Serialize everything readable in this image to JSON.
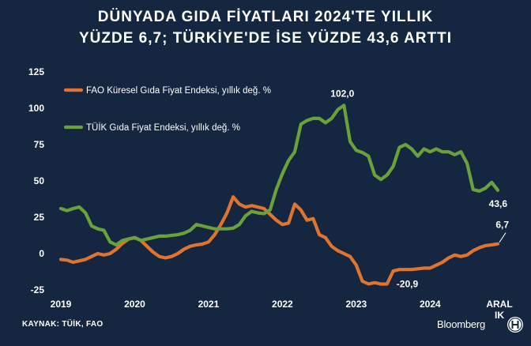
{
  "title_line1": "DÜNYADA GIDA FİYATLARI 2024'TE YILLIK",
  "title_line2": "YÜZDE 6,7; TÜRKİYE'DE İSE YÜZDE 43,6 ARTTI",
  "source": "KAYNAK: TÜİK, FAO",
  "brand": "Bloomberg",
  "logo_icon": "ht-emblem-icon",
  "colors": {
    "background": "#152640",
    "fao": "#e0742e",
    "tuik": "#6aa13a",
    "text": "#ffffff"
  },
  "chart_data": {
    "type": "line",
    "title": "DÜNYADA GIDA FİYATLARI 2024'TE YILLIK YÜZDE 6,7; TÜRKİYE'DE İSE YÜZDE 43,6 ARTTI",
    "xlabel": "",
    "ylabel": "",
    "x_range": [
      "2019-01",
      "2024-12"
    ],
    "ylim": [
      -25,
      125
    ],
    "yticks": [
      -25,
      0,
      25,
      50,
      75,
      100,
      125
    ],
    "ytick_labels": [
      "-25",
      "0",
      "25",
      "50",
      "75",
      "100",
      "125"
    ],
    "xticks": [
      {
        "x": "2019-01",
        "label": "2019"
      },
      {
        "x": "2020-01",
        "label": "2020"
      },
      {
        "x": "2021-01",
        "label": "2021"
      },
      {
        "x": "2022-01",
        "label": "2022"
      },
      {
        "x": "2023-01",
        "label": "2023"
      },
      {
        "x": "2024-01",
        "label": "2024"
      },
      {
        "x": "2024-12",
        "label": "ARAL IK"
      }
    ],
    "grid": false,
    "legend": "top-left",
    "series": [
      {
        "name": "FAO Küresel Gıda Fiyat Endeksi, yıllık değ. %",
        "color": "#e0742e",
        "points": [
          [
            "2019-01",
            -4
          ],
          [
            "2019-02",
            -4.5
          ],
          [
            "2019-03",
            -6
          ],
          [
            "2019-04",
            -5
          ],
          [
            "2019-05",
            -4
          ],
          [
            "2019-06",
            -2
          ],
          [
            "2019-07",
            0
          ],
          [
            "2019-08",
            -1
          ],
          [
            "2019-09",
            0
          ],
          [
            "2019-10",
            3
          ],
          [
            "2019-11",
            7
          ],
          [
            "2019-12",
            10
          ],
          [
            "2020-01",
            11
          ],
          [
            "2020-02",
            9
          ],
          [
            "2020-03",
            5
          ],
          [
            "2020-04",
            1
          ],
          [
            "2020-05",
            -2
          ],
          [
            "2020-06",
            -3
          ],
          [
            "2020-07",
            -2
          ],
          [
            "2020-08",
            0
          ],
          [
            "2020-09",
            3
          ],
          [
            "2020-10",
            5
          ],
          [
            "2020-11",
            6
          ],
          [
            "2020-12",
            6.5
          ],
          [
            "2021-01",
            8
          ],
          [
            "2021-02",
            13
          ],
          [
            "2021-03",
            20
          ],
          [
            "2021-04",
            28
          ],
          [
            "2021-05",
            39
          ],
          [
            "2021-06",
            34
          ],
          [
            "2021-07",
            32
          ],
          [
            "2021-08",
            33
          ],
          [
            "2021-09",
            32
          ],
          [
            "2021-10",
            31
          ],
          [
            "2021-11",
            27
          ],
          [
            "2021-12",
            23
          ],
          [
            "2022-01",
            20
          ],
          [
            "2022-02",
            21
          ],
          [
            "2022-03",
            34
          ],
          [
            "2022-04",
            30
          ],
          [
            "2022-05",
            23
          ],
          [
            "2022-06",
            24
          ],
          [
            "2022-07",
            13
          ],
          [
            "2022-08",
            11
          ],
          [
            "2022-09",
            5
          ],
          [
            "2022-10",
            2
          ],
          [
            "2022-11",
            0
          ],
          [
            "2022-12",
            -2
          ],
          [
            "2023-01",
            -8
          ],
          [
            "2023-02",
            -19
          ],
          [
            "2023-03",
            -20.9
          ],
          [
            "2023-04",
            -20
          ],
          [
            "2023-05",
            -21
          ],
          [
            "2023-06",
            -20.9
          ],
          [
            "2023-07",
            -12
          ],
          [
            "2023-08",
            -11
          ],
          [
            "2023-09",
            -11
          ],
          [
            "2023-10",
            -11
          ],
          [
            "2023-11",
            -10.5
          ],
          [
            "2023-12",
            -10
          ],
          [
            "2024-01",
            -10
          ],
          [
            "2024-02",
            -8
          ],
          [
            "2024-03",
            -6
          ],
          [
            "2024-04",
            -3
          ],
          [
            "2024-05",
            -1
          ],
          [
            "2024-06",
            -2
          ],
          [
            "2024-07",
            -1
          ],
          [
            "2024-08",
            2
          ],
          [
            "2024-09",
            4
          ],
          [
            "2024-10",
            5.5
          ],
          [
            "2024-11",
            6
          ],
          [
            "2024-12",
            6.7
          ]
        ]
      },
      {
        "name": "TÜİK Gıda Fiyat Endeksi, yıllık değ. %",
        "color": "#6aa13a",
        "points": [
          [
            "2019-01",
            31
          ],
          [
            "2019-02",
            29.5
          ],
          [
            "2019-03",
            31
          ],
          [
            "2019-04",
            32
          ],
          [
            "2019-05",
            28
          ],
          [
            "2019-06",
            19
          ],
          [
            "2019-07",
            17
          ],
          [
            "2019-08",
            16
          ],
          [
            "2019-09",
            8
          ],
          [
            "2019-10",
            6
          ],
          [
            "2019-11",
            9
          ],
          [
            "2019-12",
            10
          ],
          [
            "2020-01",
            11
          ],
          [
            "2020-02",
            9
          ],
          [
            "2020-03",
            10
          ],
          [
            "2020-04",
            11
          ],
          [
            "2020-05",
            12
          ],
          [
            "2020-06",
            12
          ],
          [
            "2020-07",
            12.5
          ],
          [
            "2020-08",
            13
          ],
          [
            "2020-09",
            14
          ],
          [
            "2020-10",
            16
          ],
          [
            "2020-11",
            20
          ],
          [
            "2020-12",
            19
          ],
          [
            "2021-01",
            18
          ],
          [
            "2021-02",
            17
          ],
          [
            "2021-03",
            17
          ],
          [
            "2021-04",
            17
          ],
          [
            "2021-05",
            17.5
          ],
          [
            "2021-06",
            20
          ],
          [
            "2021-07",
            26
          ],
          [
            "2021-08",
            29
          ],
          [
            "2021-09",
            28
          ],
          [
            "2021-10",
            27.5
          ],
          [
            "2021-11",
            30
          ],
          [
            "2021-12",
            44
          ],
          [
            "2022-01",
            55
          ],
          [
            "2022-02",
            64
          ],
          [
            "2022-03",
            70
          ],
          [
            "2022-04",
            89
          ],
          [
            "2022-05",
            91.5
          ],
          [
            "2022-06",
            93
          ],
          [
            "2022-07",
            93
          ],
          [
            "2022-08",
            90
          ],
          [
            "2022-09",
            93
          ],
          [
            "2022-10",
            99
          ],
          [
            "2022-11",
            102
          ],
          [
            "2022-12",
            77
          ],
          [
            "2023-01",
            71
          ],
          [
            "2023-02",
            69.5
          ],
          [
            "2023-03",
            67
          ],
          [
            "2023-04",
            54
          ],
          [
            "2023-05",
            51
          ],
          [
            "2023-06",
            54
          ],
          [
            "2023-07",
            60
          ],
          [
            "2023-08",
            73
          ],
          [
            "2023-09",
            75
          ],
          [
            "2023-10",
            72
          ],
          [
            "2023-11",
            67
          ],
          [
            "2023-12",
            72
          ],
          [
            "2024-01",
            70
          ],
          [
            "2024-02",
            72
          ],
          [
            "2024-03",
            70
          ],
          [
            "2024-04",
            70
          ],
          [
            "2024-05",
            68
          ],
          [
            "2024-06",
            70
          ],
          [
            "2024-07",
            62
          ],
          [
            "2024-08",
            44
          ],
          [
            "2024-09",
            43
          ],
          [
            "2024-10",
            45
          ],
          [
            "2024-11",
            49
          ],
          [
            "2024-12",
            43.6
          ]
        ]
      }
    ],
    "annotations": [
      {
        "text": "102,0",
        "series": 1,
        "x": "2022-11",
        "y": 102
      },
      {
        "text": "-20,9",
        "series": 0,
        "x": "2023-06",
        "y": -20.9
      },
      {
        "text": "43,6",
        "series": 1,
        "x": "2024-12",
        "y": 43.6
      },
      {
        "text": "6,7",
        "series": 0,
        "x": "2024-12",
        "y": 6.7
      }
    ]
  }
}
